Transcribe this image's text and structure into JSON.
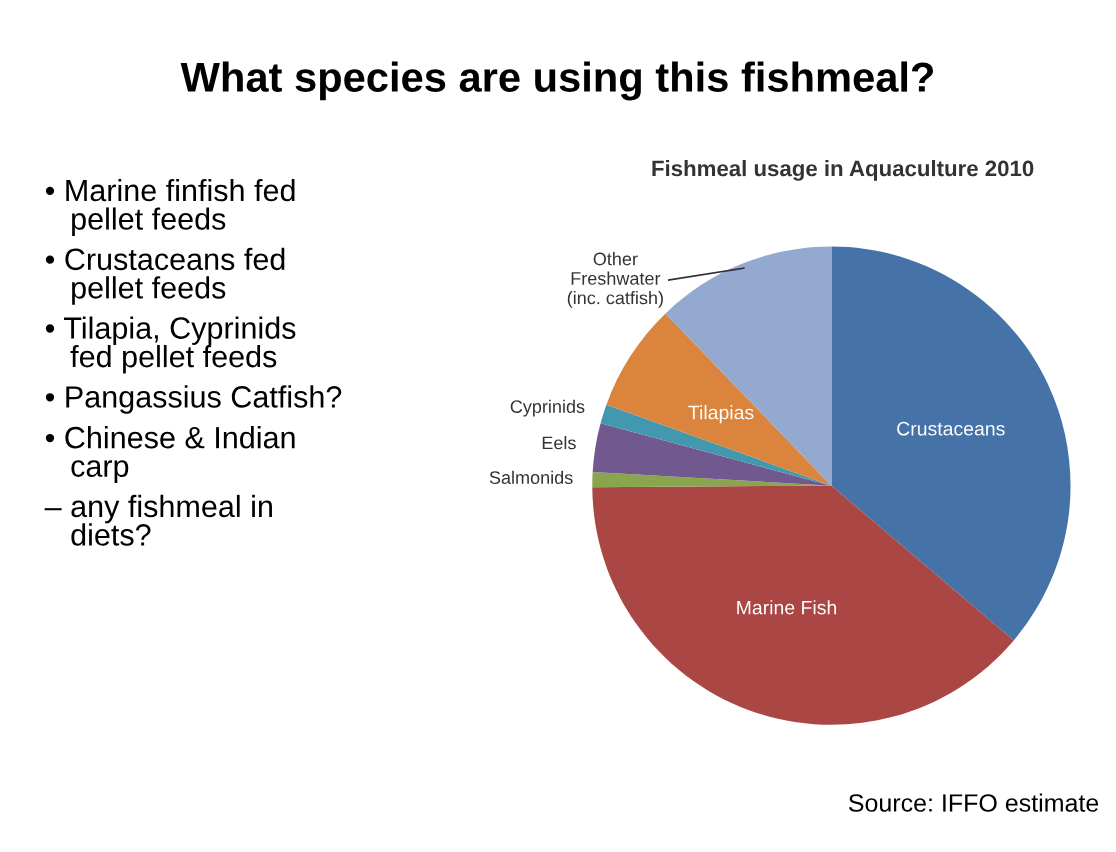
{
  "chart_data": {
    "type": "pie",
    "title": "What species are using this fishmeal?",
    "subtitle": "Fishmeal usage in Aquaculture 2010",
    "categories": [
      "Crustaceans",
      "Marine Fish",
      "Salmonids",
      "Eels",
      "Cyprinids",
      "Tilapias",
      "Other Freshwater (inc. catfish)"
    ],
    "values": [
      36.2,
      38.7,
      1.0,
      3.3,
      1.3,
      7.3,
      12.2
    ],
    "colors": [
      "#4572a7",
      "#aa4643",
      "#89a54e",
      "#71588f",
      "#4198af",
      "#db843d",
      "#93a9cf"
    ],
    "annotations": [
      "• Marine finfish fed pellet feeds",
      "• Crustaceans fed pellet feeds",
      "• Tilapia, Cyprinids fed pellet feeds",
      "• Pangassius Catfish?",
      "• Chinese & Indian carp",
      "– any fishmeal in diets?",
      "Source: IFFO estimate"
    ]
  }
}
